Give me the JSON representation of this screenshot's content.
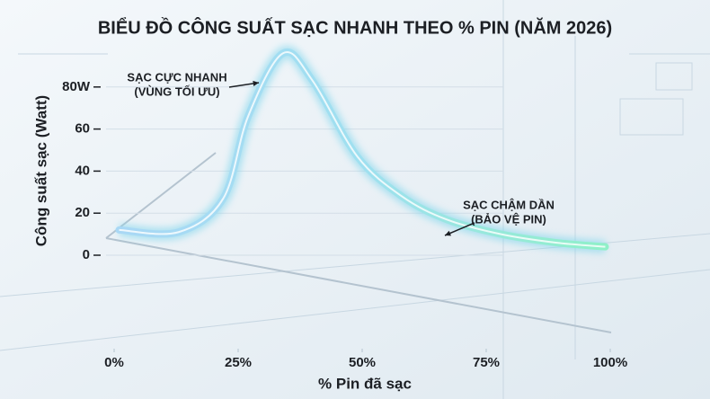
{
  "chart_data": {
    "type": "line",
    "title": "BIỂU ĐỒ CÔNG SUẤT SẠC NHANH THEO % PIN (NĂM 2026)",
    "x_label": "% Pin đã sạc",
    "y_label": "Công suất sạc (Watt)",
    "x": [
      1,
      13,
      22,
      27,
      34,
      40,
      49,
      58,
      67,
      78,
      89,
      99
    ],
    "series": [
      {
        "color": "#7fd6ec",
        "values": [
          12,
          11,
          27,
          66,
          96,
          83,
          47,
          28,
          17,
          10,
          6,
          4
        ]
      }
    ],
    "xlim": [
      0,
      100
    ],
    "xticks": [
      {
        "value": 0,
        "label": "0%"
      },
      {
        "value": 25,
        "label": "25%"
      },
      {
        "value": 50,
        "label": "50%"
      },
      {
        "value": 75,
        "label": "75%"
      },
      {
        "value": 100,
        "label": "100%"
      }
    ],
    "ylim": [
      0,
      100
    ],
    "yticks": [
      0,
      20,
      40,
      60,
      {
        "value": 80,
        "label": "80W"
      }
    ],
    "annotations": [
      {
        "lines": [
          "SẠC CỰC NHANH",
          "(VÙNG TỐI ƯU)"
        ]
      },
      {
        "lines": [
          "SẠC CHẬM DẦN",
          "(BẢO VỆ PIN)"
        ]
      }
    ]
  }
}
